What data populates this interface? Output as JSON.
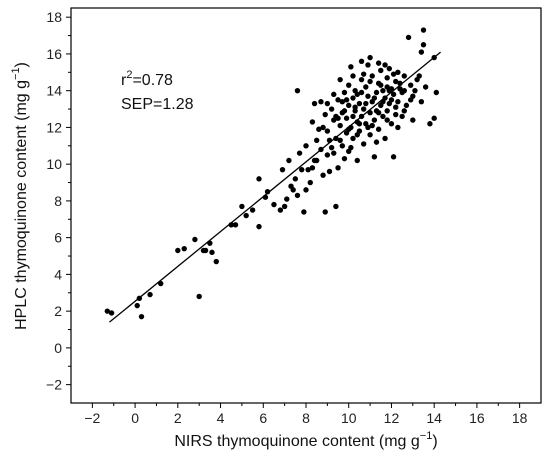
{
  "chart_data": {
    "type": "scatter",
    "title": "",
    "xlabel": "NIRS thymoquinone content (mg g",
    "ylabel": "HPLC thymoquinone content (mg g",
    "unit_superscript": "−1",
    "unit_close": ")",
    "xlim": [
      -3,
      19
    ],
    "ylim": [
      -3,
      18.5
    ],
    "xticks": [
      -2,
      0,
      2,
      4,
      6,
      8,
      10,
      12,
      14,
      16,
      18
    ],
    "yticks": [
      -2,
      0,
      2,
      4,
      6,
      8,
      10,
      12,
      14,
      16,
      18
    ],
    "xtick_labels": [
      "−2",
      "0",
      "2",
      "4",
      "6",
      "8",
      "10",
      "12",
      "14",
      "16",
      "18"
    ],
    "ytick_labels": [
      "−2",
      "0",
      "2",
      "4",
      "6",
      "8",
      "10",
      "12",
      "14",
      "16",
      "18"
    ],
    "grid": false,
    "legend": "none",
    "annotations": {
      "r2_base": "r",
      "r2_sup": "2",
      "r2_value": "=0.78",
      "sep": "SEP=1.28"
    },
    "fit_line": {
      "x": [
        -1.2,
        14.3
      ],
      "y": [
        1.4,
        16.1
      ]
    },
    "point_color": "#000000",
    "points": [
      [
        -1.3,
        2.0
      ],
      [
        -1.1,
        1.9
      ],
      [
        0.1,
        2.3
      ],
      [
        0.2,
        2.7
      ],
      [
        0.3,
        1.7
      ],
      [
        0.7,
        2.9
      ],
      [
        1.2,
        3.5
      ],
      [
        2.0,
        5.3
      ],
      [
        2.3,
        5.4
      ],
      [
        2.8,
        5.9
      ],
      [
        3.0,
        2.8
      ],
      [
        3.2,
        5.3
      ],
      [
        3.3,
        5.3
      ],
      [
        3.5,
        5.7
      ],
      [
        3.6,
        5.2
      ],
      [
        3.8,
        4.7
      ],
      [
        4.5,
        6.7
      ],
      [
        4.7,
        6.7
      ],
      [
        5.0,
        7.7
      ],
      [
        5.2,
        7.2
      ],
      [
        5.5,
        7.5
      ],
      [
        5.8,
        6.6
      ],
      [
        5.8,
        9.2
      ],
      [
        6.1,
        8.2
      ],
      [
        6.2,
        8.5
      ],
      [
        6.5,
        7.8
      ],
      [
        6.8,
        7.5
      ],
      [
        7.0,
        7.7
      ],
      [
        7.2,
        10.2
      ],
      [
        7.3,
        8.8
      ],
      [
        7.5,
        9.2
      ],
      [
        7.6,
        8.3
      ],
      [
        7.6,
        14.0
      ],
      [
        7.7,
        10.6
      ],
      [
        7.8,
        9.7
      ],
      [
        7.9,
        7.4
      ],
      [
        8.0,
        8.6
      ],
      [
        8.0,
        11.0
      ],
      [
        8.2,
        9.0
      ],
      [
        8.3,
        9.8
      ],
      [
        8.3,
        12.3
      ],
      [
        8.4,
        13.3
      ],
      [
        8.5,
        10.2
      ],
      [
        8.5,
        11.3
      ],
      [
        8.7,
        10.8
      ],
      [
        8.8,
        9.4
      ],
      [
        8.8,
        12.0
      ],
      [
        8.9,
        7.4
      ],
      [
        9.0,
        10.5
      ],
      [
        9.0,
        11.8
      ],
      [
        9.1,
        9.6
      ],
      [
        9.2,
        13.0
      ],
      [
        9.3,
        10.6
      ],
      [
        9.3,
        12.4
      ],
      [
        9.4,
        11.4
      ],
      [
        9.4,
        7.7
      ],
      [
        9.5,
        13.5
      ],
      [
        9.5,
        9.8
      ],
      [
        9.6,
        12.1
      ],
      [
        9.6,
        14.6
      ],
      [
        9.7,
        11.0
      ],
      [
        9.7,
        12.8
      ],
      [
        9.8,
        13.9
      ],
      [
        9.8,
        10.3
      ],
      [
        9.9,
        12.5
      ],
      [
        9.9,
        11.7
      ],
      [
        10.0,
        13.2
      ],
      [
        10.0,
        14.3
      ],
      [
        10.0,
        10.7
      ],
      [
        10.1,
        12.0
      ],
      [
        10.1,
        15.3
      ],
      [
        10.2,
        13.6
      ],
      [
        10.2,
        11.4
      ],
      [
        10.3,
        12.9
      ],
      [
        10.3,
        14.0
      ],
      [
        10.4,
        12.3
      ],
      [
        10.4,
        10.2
      ],
      [
        10.5,
        13.3
      ],
      [
        10.5,
        11.8
      ],
      [
        10.6,
        14.6
      ],
      [
        10.6,
        12.6
      ],
      [
        10.7,
        13.0
      ],
      [
        10.7,
        11.1
      ],
      [
        10.8,
        14.2
      ],
      [
        10.8,
        12.2
      ],
      [
        10.9,
        13.7
      ],
      [
        10.9,
        15.4
      ],
      [
        11.0,
        12.8
      ],
      [
        11.0,
        11.6
      ],
      [
        11.1,
        13.4
      ],
      [
        11.1,
        14.8
      ],
      [
        11.2,
        12.4
      ],
      [
        11.2,
        10.4
      ],
      [
        11.3,
        13.9
      ],
      [
        11.3,
        12.9
      ],
      [
        11.4,
        14.4
      ],
      [
        11.4,
        11.9
      ],
      [
        11.5,
        13.2
      ],
      [
        11.5,
        15.1
      ],
      [
        11.6,
        12.6
      ],
      [
        11.6,
        14.0
      ],
      [
        11.7,
        13.6
      ],
      [
        11.7,
        11.4
      ],
      [
        11.8,
        14.7
      ],
      [
        11.8,
        12.9
      ],
      [
        11.9,
        13.3
      ],
      [
        11.9,
        15.2
      ],
      [
        12.0,
        14.1
      ],
      [
        12.0,
        12.2
      ],
      [
        12.1,
        13.8
      ],
      [
        12.1,
        10.4
      ],
      [
        12.2,
        14.5
      ],
      [
        12.2,
        12.7
      ],
      [
        12.3,
        13.4
      ],
      [
        12.3,
        15.0
      ],
      [
        12.4,
        14.1
      ],
      [
        12.5,
        12.6
      ],
      [
        12.5,
        13.9
      ],
      [
        12.6,
        14.8
      ],
      [
        12.7,
        13.2
      ],
      [
        12.8,
        16.9
      ],
      [
        12.9,
        14.3
      ],
      [
        13.0,
        12.4
      ],
      [
        13.0,
        13.7
      ],
      [
        13.2,
        14.6
      ],
      [
        13.4,
        16.1
      ],
      [
        13.4,
        13.4
      ],
      [
        13.5,
        17.3
      ],
      [
        13.5,
        16.5
      ],
      [
        13.6,
        14.2
      ],
      [
        13.8,
        12.2
      ],
      [
        14.0,
        15.8
      ],
      [
        14.1,
        13.9
      ],
      [
        14.0,
        12.5
      ],
      [
        8.6,
        11.9
      ],
      [
        9.0,
        13.3
      ],
      [
        9.2,
        10.9
      ],
      [
        9.4,
        12.6
      ],
      [
        9.6,
        11.3
      ],
      [
        9.8,
        12.9
      ],
      [
        10.0,
        11.9
      ],
      [
        10.2,
        14.8
      ],
      [
        10.4,
        13.8
      ],
      [
        10.6,
        13.9
      ],
      [
        10.8,
        13.3
      ],
      [
        11.0,
        14.5
      ],
      [
        11.2,
        13.6
      ],
      [
        11.4,
        12.8
      ],
      [
        11.6,
        13.4
      ],
      [
        11.8,
        12.4
      ],
      [
        12.0,
        13.5
      ],
      [
        12.2,
        13.1
      ],
      [
        12.4,
        14.4
      ],
      [
        12.6,
        12.9
      ],
      [
        10.3,
        13.1
      ],
      [
        10.5,
        12.2
      ],
      [
        10.7,
        14.9
      ],
      [
        10.9,
        12.0
      ],
      [
        11.1,
        12.1
      ],
      [
        11.3,
        11.2
      ],
      [
        9.9,
        13.5
      ],
      [
        9.7,
        13.4
      ],
      [
        9.5,
        12.5
      ],
      [
        9.3,
        13.8
      ],
      [
        8.9,
        12.7
      ],
      [
        8.7,
        13.4
      ],
      [
        10.1,
        10.9
      ],
      [
        11.5,
        14.3
      ],
      [
        11.7,
        15.4
      ],
      [
        11.9,
        14.0
      ],
      [
        12.1,
        14.9
      ],
      [
        12.3,
        12.0
      ],
      [
        10.6,
        15.6
      ],
      [
        11.0,
        15.8
      ],
      [
        11.4,
        15.5
      ],
      [
        11.8,
        14.2
      ],
      [
        12.6,
        14.0
      ],
      [
        12.9,
        13.5
      ],
      [
        13.1,
        14.0
      ],
      [
        13.3,
        14.8
      ],
      [
        10.2,
        12.6
      ],
      [
        10.4,
        11.6
      ],
      [
        9.1,
        11.3
      ],
      [
        8.4,
        10.2
      ],
      [
        8.1,
        9.7
      ],
      [
        7.4,
        8.6
      ],
      [
        6.9,
        9.7
      ],
      [
        7.1,
        8.1
      ]
    ]
  }
}
